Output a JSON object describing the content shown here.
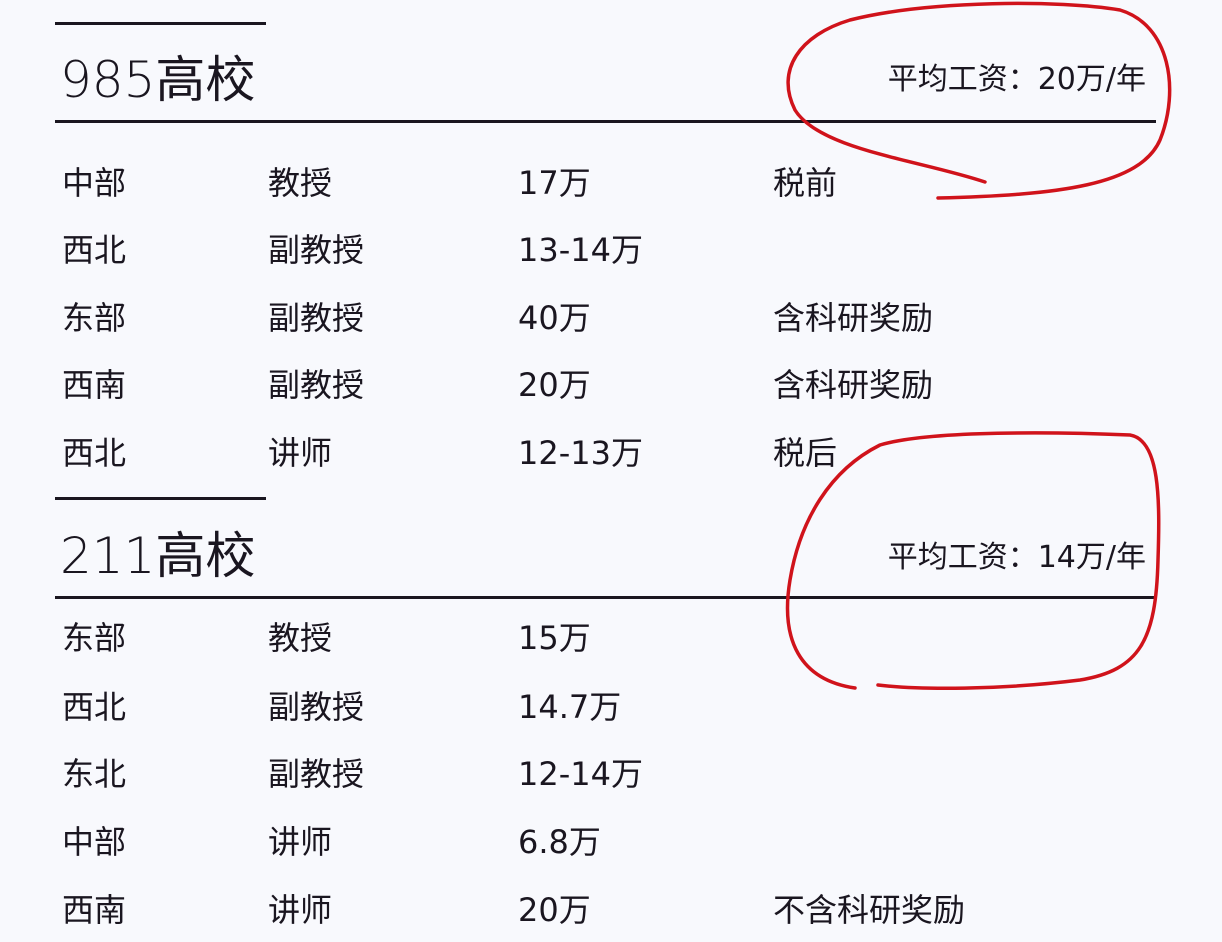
{
  "sections": [
    {
      "title": "985高校",
      "average": "平均工资：20万/年",
      "rows": [
        [
          "中部",
          "教授",
          "17万",
          "税前"
        ],
        [
          "西北",
          "副教授",
          "13-14万",
          ""
        ],
        [
          "东部",
          "副教授",
          "40万",
          "含科研奖励"
        ],
        [
          "西南",
          "副教授",
          "20万",
          "含科研奖励"
        ],
        [
          "西北",
          "讲师",
          "12-13万",
          "税后"
        ]
      ]
    },
    {
      "title": "211高校",
      "average": "平均工资：14万/年",
      "rows": [
        [
          "东部",
          "教授",
          "15万",
          ""
        ],
        [
          "西北",
          "副教授",
          "14.7万",
          ""
        ],
        [
          "东北",
          "副教授",
          "12-14万",
          ""
        ],
        [
          "中部",
          "讲师",
          "6.8万",
          ""
        ],
        [
          "西南",
          "讲师",
          "20万",
          "不含科研奖励"
        ]
      ]
    }
  ],
  "colors": {
    "annotation": "#d0131b",
    "text": "#1a1620",
    "background": "#f8f9fd"
  }
}
